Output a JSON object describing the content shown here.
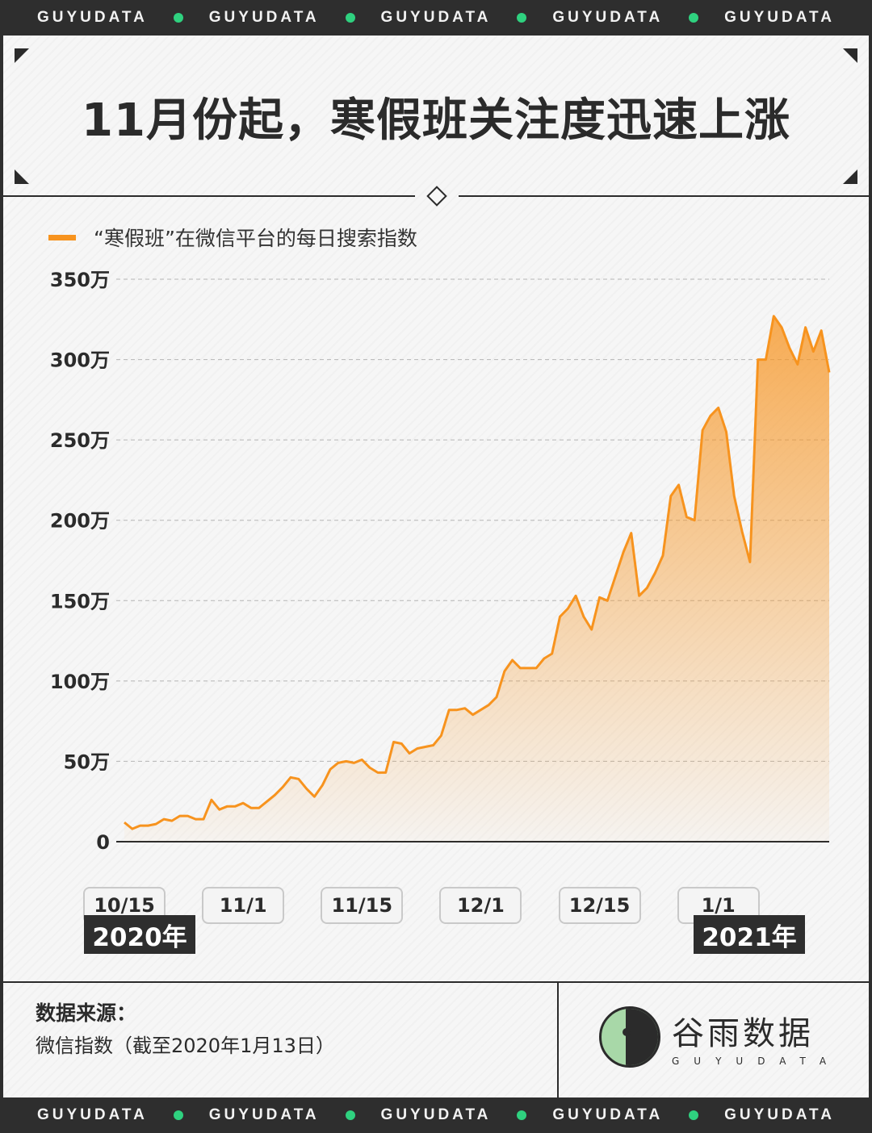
{
  "brand_band": [
    "GUYUDATA",
    "GUYUDATA",
    "GUYUDATA",
    "GUYUDATA",
    "GUYUDATA"
  ],
  "title": "11月份起，寒假班关注度迅速上涨",
  "legend_label": "“寒假班”在微信平台的每日搜索指数",
  "year_start": "2020年",
  "year_end": "2021年",
  "source": {
    "title": "数据来源：",
    "text": "微信指数（截至2020年1月13日）"
  },
  "logo": {
    "name": "谷雨数据",
    "sub": "GUYUDATA"
  },
  "colors": {
    "line": "#f7931e",
    "accent_dot": "#2fd17f",
    "dark": "#2e2e2e"
  },
  "chart_data": {
    "type": "area",
    "ylim": [
      0,
      350
    ],
    "y_ticks": [
      0,
      50,
      100,
      150,
      200,
      250,
      300,
      350
    ],
    "y_tick_labels": [
      "0",
      "50万",
      "100万",
      "150万",
      "200万",
      "250万",
      "300万",
      "350万"
    ],
    "x_tick_labels": [
      "10/15",
      "11/1",
      "11/15",
      "12/1",
      "12/15",
      "1/1"
    ],
    "x_tick_index": [
      0,
      15,
      30,
      45,
      60,
      75
    ],
    "series": [
      {
        "values": [
          12,
          8,
          10,
          10,
          11,
          14,
          13,
          16,
          16,
          14,
          14,
          26,
          20,
          22,
          22,
          24,
          21,
          21,
          25,
          29,
          34,
          40,
          39,
          33,
          28,
          35,
          45,
          49,
          50,
          49,
          51,
          46,
          43,
          43,
          62,
          61,
          55,
          58,
          59,
          60,
          66,
          82,
          82,
          83,
          79,
          82,
          85,
          90,
          106,
          113,
          108,
          108,
          108,
          114,
          117,
          140,
          145,
          153,
          140,
          132,
          152,
          150,
          165,
          180,
          192,
          153,
          158,
          167,
          178,
          215,
          222,
          202,
          200,
          256,
          265,
          270,
          255,
          215,
          193,
          174,
          300,
          300,
          327,
          320,
          307,
          297,
          320,
          305,
          318,
          292
        ]
      }
    ]
  }
}
